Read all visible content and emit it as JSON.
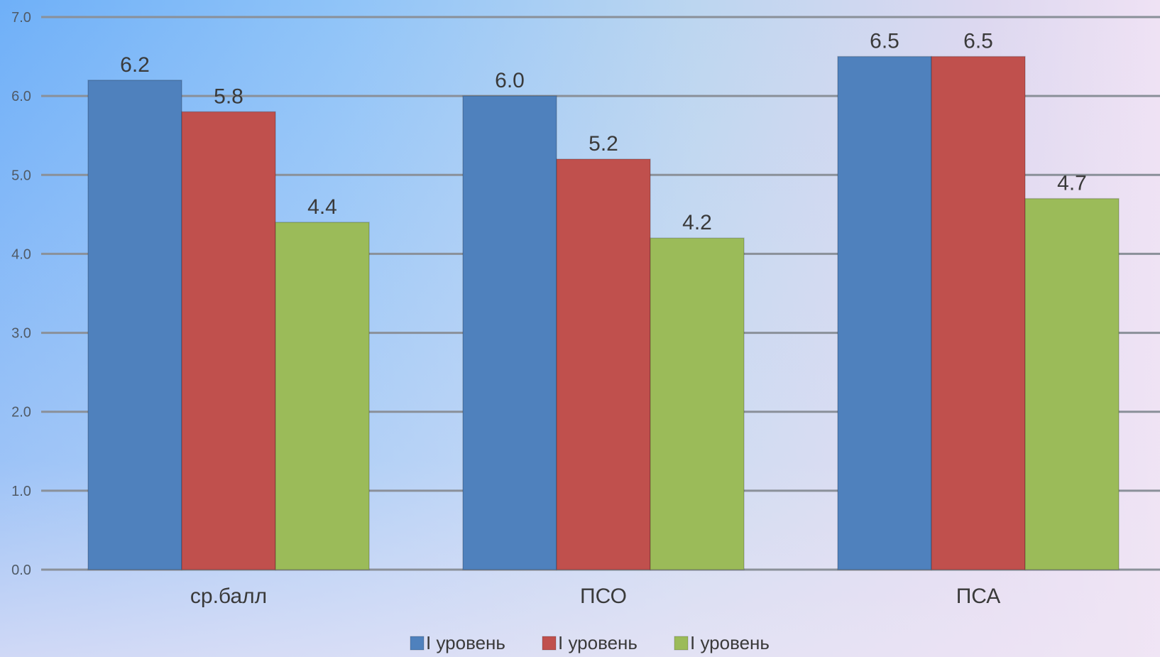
{
  "chart_data": {
    "type": "bar",
    "categories": [
      "ср.балл",
      "ПСО",
      "ПСА"
    ],
    "series": [
      {
        "name": "I уровень",
        "color": "#4f81bd",
        "values": [
          6.2,
          6.0,
          6.5
        ]
      },
      {
        "name": "I уровень",
        "color": "#c0504d",
        "values": [
          5.8,
          5.2,
          6.5
        ]
      },
      {
        "name": "I уровень",
        "color": "#9bbb59",
        "values": [
          4.4,
          4.2,
          4.7
        ]
      }
    ],
    "ylim": [
      0,
      7
    ],
    "yticks": [
      "0.0",
      "1.0",
      "2.0",
      "3.0",
      "4.0",
      "5.0",
      "6.0",
      "7.0"
    ],
    "grid": true,
    "legend_position": "bottom"
  }
}
